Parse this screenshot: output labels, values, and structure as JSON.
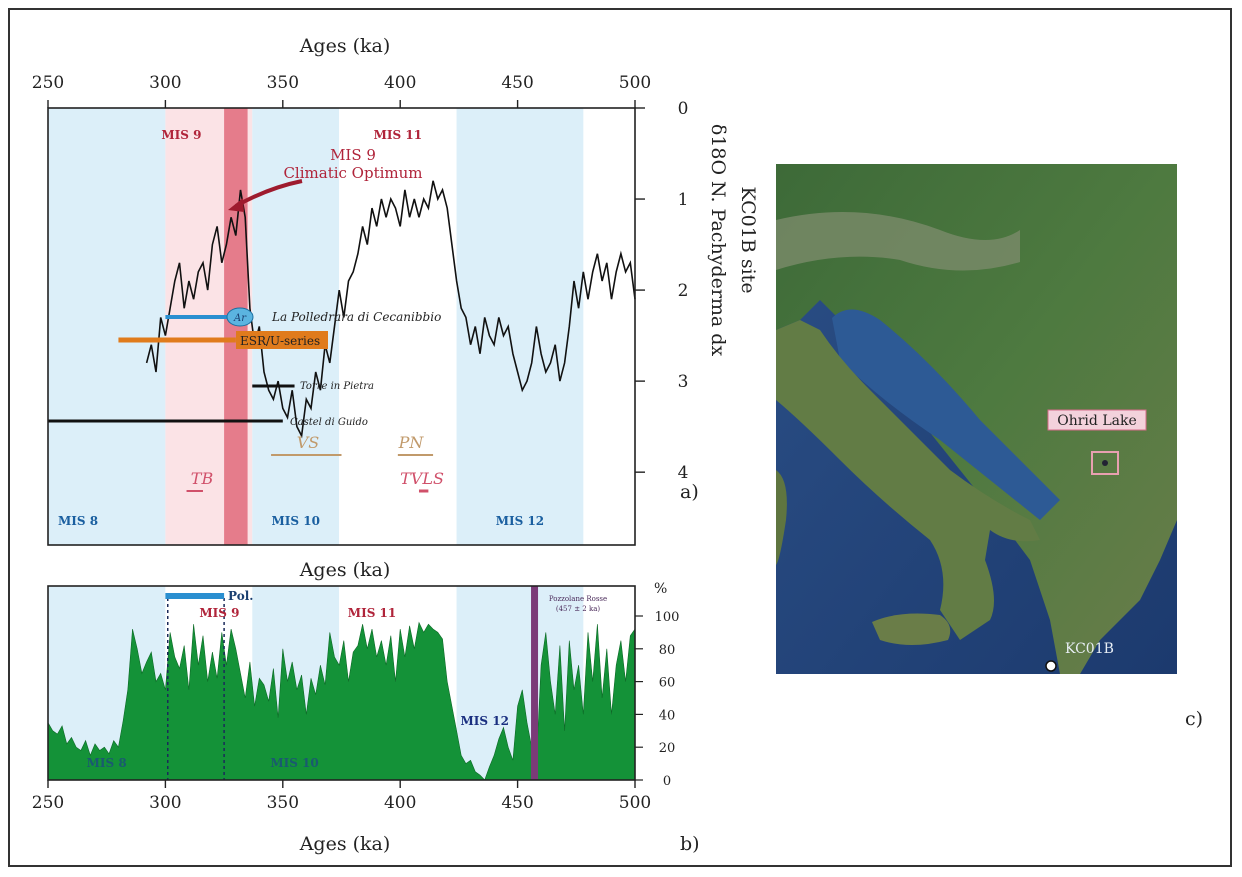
{
  "colors": {
    "glacial": "#dcefF9",
    "interglacial_pink": "#fbe3e6",
    "optimum_band": "#e06a7a",
    "d18o_line": "#111111",
    "pollen_fill": "#149238",
    "polledrara": "#2a8fd0",
    "esr": "#e07b1c",
    "pozzolane": "#7b3b78",
    "mis_red": "#b0243a",
    "mis_blue": "#1a5fa0",
    "vs_pn": "#c19a6b",
    "tb_tvls": "#d0506a",
    "arrow": "#9e1b2e"
  },
  "chart_data": [
    {
      "panel_label": "a)",
      "type": "line",
      "xlabel": "Ages (ka)",
      "ylabel_line1": "KC01B site",
      "ylabel_line2": "δ18O N. Pachyderma dx",
      "xlim": [
        250,
        500
      ],
      "ylim": [
        0,
        4.8
      ],
      "y_inverted": true,
      "x_ticks": [
        "250",
        "300",
        "350",
        "400",
        "450",
        "500"
      ],
      "y_ticks": [
        "0",
        "1",
        "2",
        "3",
        "4"
      ],
      "series": [
        {
          "x": [
            292,
            294,
            296,
            298,
            300,
            302,
            304,
            306,
            308,
            310,
            312,
            314,
            316,
            318,
            320,
            322,
            324,
            326,
            328,
            330,
            332,
            334,
            336,
            338,
            340,
            342,
            344,
            346,
            348,
            350,
            352,
            354,
            356,
            358,
            360,
            362,
            364,
            366,
            368,
            370,
            372,
            374,
            376,
            378,
            380,
            382,
            384,
            386,
            388,
            390,
            392,
            394,
            396,
            398,
            400,
            402,
            404,
            406,
            408,
            410,
            412,
            414,
            416,
            418,
            420,
            422,
            424,
            426,
            428,
            430,
            432,
            434,
            436,
            438,
            440,
            442,
            444,
            446,
            448,
            450,
            452,
            454,
            456,
            458,
            460,
            462,
            464,
            466,
            468,
            470,
            472,
            474,
            476,
            478,
            480,
            482,
            484,
            486,
            488,
            490,
            492,
            494,
            496,
            498,
            500
          ],
          "y": [
            2.8,
            2.6,
            2.9,
            2.3,
            2.5,
            2.2,
            1.9,
            1.7,
            2.2,
            1.9,
            2.1,
            1.8,
            1.7,
            2.0,
            1.5,
            1.3,
            1.7,
            1.5,
            1.2,
            1.4,
            0.9,
            1.2,
            2.2,
            2.6,
            2.4,
            2.9,
            3.1,
            3.2,
            3.0,
            3.3,
            3.4,
            3.1,
            3.5,
            3.6,
            3.2,
            3.3,
            2.9,
            3.1,
            2.6,
            2.8,
            2.4,
            2.0,
            2.3,
            1.9,
            1.8,
            1.6,
            1.3,
            1.5,
            1.1,
            1.3,
            1.0,
            1.2,
            1.0,
            1.1,
            1.3,
            0.9,
            1.2,
            1.0,
            1.2,
            1.0,
            1.1,
            0.8,
            1.0,
            0.9,
            1.1,
            1.5,
            1.9,
            2.2,
            2.3,
            2.6,
            2.4,
            2.7,
            2.3,
            2.5,
            2.6,
            2.3,
            2.5,
            2.4,
            2.7,
            2.9,
            3.1,
            3.0,
            2.8,
            2.4,
            2.7,
            2.9,
            2.8,
            2.6,
            3.0,
            2.8,
            2.4,
            1.9,
            2.2,
            1.8,
            2.1,
            1.8,
            1.6,
            1.9,
            1.7,
            2.1,
            1.8,
            1.6,
            1.8,
            1.7,
            2.1
          ]
        }
      ],
      "bands": [
        {
          "label": "MIS 8",
          "kind": "glacial",
          "from": 250,
          "to": 300
        },
        {
          "label": "MIS 9",
          "kind": "interglacial",
          "from": 300,
          "to": 337
        },
        {
          "label": "MIS 10",
          "kind": "glacial",
          "from": 337,
          "to": 374
        },
        {
          "label": "MIS 11",
          "kind": "interglacial",
          "from": 374,
          "to": 424
        },
        {
          "label": "MIS 12",
          "kind": "glacial",
          "from": 424,
          "to": 478
        }
      ],
      "optimum_band": {
        "from": 325,
        "to": 335
      },
      "annotations": {
        "optimum_line1": "MIS 9",
        "optimum_line2": "Climatic Optimum",
        "ar_label": "Ar",
        "polledrara": "La Polledrara di Cecanibbio",
        "esr": "ESR/U-series",
        "torre": "Torre in Pietra",
        "castel": "Castel di Guido",
        "vs": "VS",
        "pn": "PN",
        "tb": "TB",
        "tvls": "TVLS"
      },
      "ranges": [
        {
          "name": "polledrara",
          "from": 300,
          "to": 330
        },
        {
          "name": "esr",
          "from": 280,
          "to": 330
        },
        {
          "name": "torre",
          "from": 337,
          "to": 355
        },
        {
          "name": "castel",
          "from": 250,
          "to": 350
        },
        {
          "name": "vs",
          "from": 345,
          "to": 375
        },
        {
          "name": "pn",
          "from": 399,
          "to": 414
        },
        {
          "name": "tb",
          "from": 309,
          "to": 316
        },
        {
          "name": "tvls",
          "from": 408,
          "to": 412
        }
      ]
    },
    {
      "panel_label": "b)",
      "type": "area",
      "xlabel": "Ages (ka)",
      "ylabel": "%",
      "xlim": [
        250,
        500
      ],
      "ylim": [
        0,
        100
      ],
      "x_ticks": [
        "250",
        "300",
        "350",
        "400",
        "450",
        "500"
      ],
      "y_ticks": [
        "0",
        "20",
        "40",
        "60",
        "80",
        "100"
      ],
      "x": [
        250,
        252,
        254,
        256,
        258,
        260,
        262,
        264,
        266,
        268,
        270,
        272,
        274,
        276,
        278,
        280,
        282,
        284,
        286,
        288,
        290,
        292,
        294,
        296,
        298,
        300,
        302,
        304,
        306,
        308,
        310,
        312,
        314,
        316,
        318,
        320,
        322,
        324,
        326,
        328,
        330,
        332,
        334,
        336,
        338,
        340,
        342,
        344,
        346,
        348,
        350,
        352,
        354,
        356,
        358,
        360,
        362,
        364,
        366,
        368,
        370,
        372,
        374,
        376,
        378,
        380,
        382,
        384,
        386,
        388,
        390,
        392,
        394,
        396,
        398,
        400,
        402,
        404,
        406,
        408,
        410,
        412,
        414,
        416,
        418,
        420,
        422,
        424,
        426,
        428,
        430,
        432,
        434,
        436,
        438,
        440,
        442,
        444,
        446,
        448,
        450,
        452,
        454,
        456,
        458,
        460,
        462,
        464,
        466,
        468,
        470,
        472,
        474,
        476,
        478,
        480,
        482,
        484,
        486,
        488,
        490,
        492,
        494,
        496,
        498,
        500
      ],
      "values": [
        35,
        30,
        28,
        33,
        22,
        26,
        20,
        18,
        24,
        15,
        22,
        18,
        20,
        16,
        24,
        20,
        36,
        55,
        92,
        80,
        65,
        72,
        78,
        60,
        65,
        55,
        90,
        75,
        68,
        82,
        55,
        95,
        70,
        88,
        60,
        78,
        62,
        90,
        70,
        92,
        80,
        65,
        50,
        72,
        45,
        62,
        58,
        48,
        68,
        38,
        80,
        60,
        72,
        55,
        64,
        40,
        62,
        52,
        70,
        58,
        90,
        75,
        70,
        85,
        60,
        78,
        82,
        95,
        80,
        92,
        75,
        85,
        70,
        88,
        60,
        92,
        75,
        94,
        80,
        96,
        90,
        95,
        92,
        90,
        86,
        60,
        45,
        30,
        15,
        10,
        12,
        5,
        3,
        0,
        8,
        15,
        25,
        32,
        20,
        12,
        45,
        55,
        35,
        20,
        10,
        70,
        90,
        60,
        40,
        82,
        30,
        85,
        55,
        70,
        40,
        90,
        60,
        95,
        50,
        80,
        40,
        70,
        85,
        60,
        88,
        92
      ],
      "bands": [
        {
          "label": "MIS 8",
          "kind": "glacial",
          "from": 250,
          "to": 300
        },
        {
          "label": "MIS 9",
          "kind": "interglacial",
          "from": 300,
          "to": 337
        },
        {
          "label": "MIS 10",
          "kind": "glacial",
          "from": 337,
          "to": 374
        },
        {
          "label": "MIS 11",
          "kind": "interglacial",
          "from": 374,
          "to": 424
        },
        {
          "label": "MIS 12",
          "kind": "glacial",
          "from": 424,
          "to": 478
        }
      ],
      "pol_bar": {
        "label": "Pol.",
        "from": 300,
        "to": 325
      },
      "dashed_lines_x": [
        301,
        325
      ],
      "pozzolane": {
        "label": "Pozzolane Rosse",
        "age": "(457 ± 2 ka)",
        "x": 457
      }
    }
  ],
  "map": {
    "panel_label": "c)",
    "ohrid_label": "Ohrid Lake",
    "site_label": "KC01B"
  }
}
